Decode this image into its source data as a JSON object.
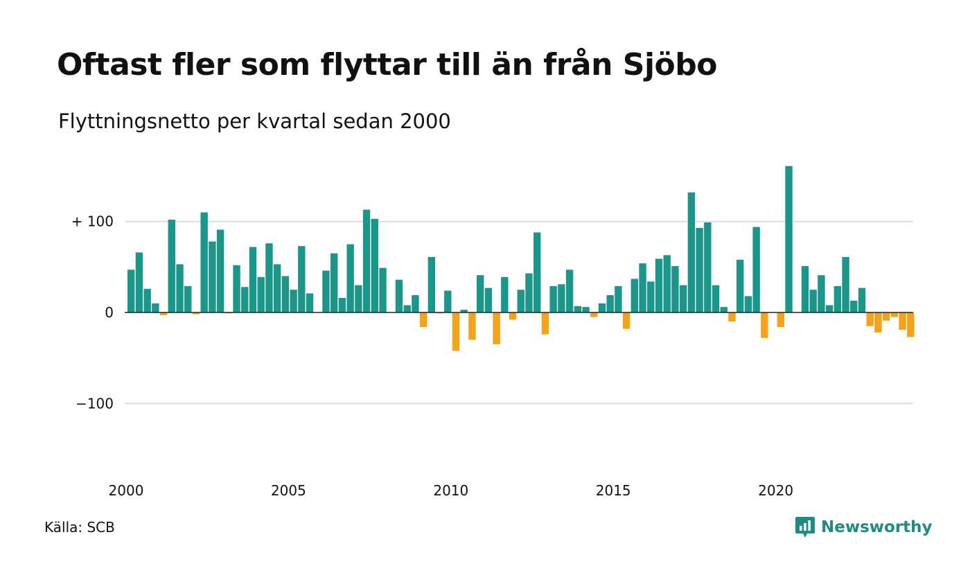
{
  "header": {
    "title": "Oftast fler som flyttar till än från Sjöbo",
    "subtitle": "Flyttningsnetto per kvartal sedan 2000"
  },
  "footer": {
    "source": "Källa: SCB",
    "brand": "Newsworthy",
    "brand_icon": "chart-speech-bubble-icon"
  },
  "colors": {
    "positive": "#1a968a",
    "negative": "#f5a21b",
    "grid": "#dddddd",
    "zero_line": "#222222",
    "brand": "#1f8c80"
  },
  "chart_data": {
    "type": "bar",
    "y_ticks": [
      {
        "value": 100,
        "label": "+ 100"
      },
      {
        "value": 0,
        "label": "0"
      },
      {
        "value": -100,
        "label": "−100"
      }
    ],
    "x_ticks": [
      {
        "year": 2000,
        "label": "2000"
      },
      {
        "year": 2005,
        "label": "2005"
      },
      {
        "year": 2010,
        "label": "2010"
      },
      {
        "year": 2015,
        "label": "2015"
      },
      {
        "year": 2020,
        "label": "2020"
      }
    ],
    "ylim": [
      -170,
      165
    ],
    "grid": true,
    "start_year": 2000,
    "start_quarter": 1,
    "values": [
      47,
      66,
      26,
      10,
      -3,
      102,
      53,
      29,
      -2,
      110,
      78,
      91,
      -1,
      52,
      28,
      72,
      39,
      76,
      53,
      40,
      25,
      73,
      21,
      0,
      46,
      65,
      16,
      75,
      30,
      113,
      103,
      49,
      0,
      36,
      8,
      19,
      -16,
      61,
      -1,
      24,
      -42,
      3,
      -30,
      41,
      27,
      -35,
      39,
      -8,
      25,
      43,
      88,
      -24,
      29,
      31,
      47,
      7,
      6,
      -5,
      10,
      19,
      29,
      -18,
      37,
      54,
      34,
      59,
      63,
      51,
      30,
      132,
      93,
      99,
      30,
      6,
      -10,
      58,
      18,
      94,
      -28,
      0,
      -16,
      161,
      0,
      51,
      25,
      41,
      8,
      29,
      61,
      13,
      27,
      -15,
      -22,
      -9,
      -5,
      -19,
      -27
    ]
  }
}
